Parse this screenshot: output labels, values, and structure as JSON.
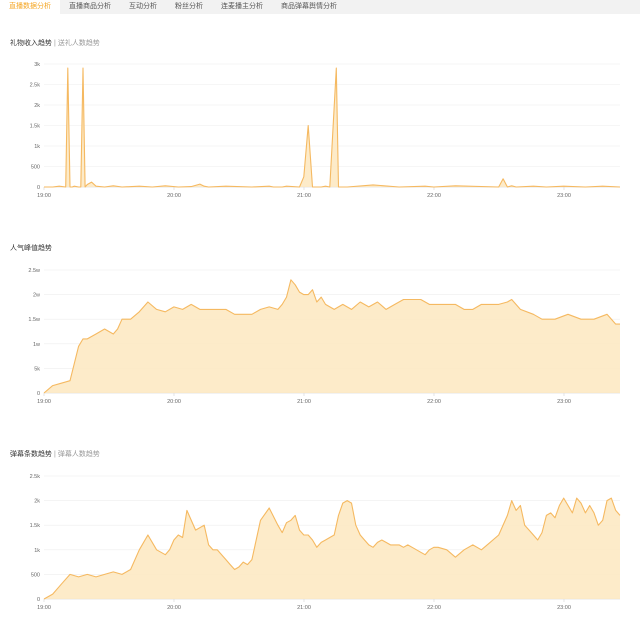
{
  "tabs": [
    {
      "label": "直播数据分析",
      "active": true
    },
    {
      "label": "直播商品分析",
      "active": false
    },
    {
      "label": "互动分析",
      "active": false
    },
    {
      "label": "粉丝分析",
      "active": false
    },
    {
      "label": "连麦播主分析",
      "active": false
    },
    {
      "label": "商品弹幕舆情分析",
      "active": false
    }
  ],
  "colors": {
    "line": "#f5b961",
    "fill": "#fde8c0",
    "grid": "#eeeeee",
    "axis": "#dddddd",
    "accent": "#f5a623"
  },
  "sections": [
    {
      "title": "礼物收入趋势",
      "subtitle": "送礼人数趋势"
    },
    {
      "title": "人气峰值趋势",
      "subtitle": ""
    },
    {
      "title": "弹幕条数趋势",
      "subtitle": "弹幕人数趋势"
    }
  ],
  "chart_data": [
    {
      "type": "area",
      "title": "礼物收入趋势",
      "x_ticks": [
        "19:00",
        "20:00",
        "21:00",
        "22:00",
        "23:00"
      ],
      "y_ticks": [
        "0",
        "500",
        "1k",
        "1.5k",
        "2k",
        "2.5k",
        "3k"
      ],
      "ylim": [
        0,
        3000
      ],
      "xlim": [
        0,
        266
      ],
      "grid": true,
      "x": [
        0,
        4,
        7,
        10,
        11,
        12,
        13,
        14,
        16,
        17,
        18,
        19,
        20,
        22,
        24,
        28,
        32,
        36,
        44,
        50,
        56,
        62,
        68,
        72,
        74,
        76,
        84,
        96,
        104,
        106,
        108,
        110,
        112,
        118,
        120,
        122,
        124,
        127,
        128,
        130,
        132,
        135,
        136,
        140,
        152,
        164,
        176,
        180,
        190,
        210,
        212,
        214,
        216,
        218,
        226,
        232,
        240,
        250,
        258,
        266
      ],
      "values": [
        0,
        0,
        20,
        0,
        2900,
        0,
        0,
        20,
        0,
        0,
        2900,
        0,
        60,
        120,
        20,
        0,
        30,
        0,
        20,
        0,
        30,
        0,
        10,
        70,
        20,
        0,
        20,
        0,
        20,
        0,
        0,
        0,
        20,
        0,
        250,
        1500,
        0,
        0,
        0,
        20,
        0,
        2900,
        0,
        0,
        50,
        0,
        20,
        0,
        30,
        0,
        200,
        0,
        30,
        0,
        20,
        0,
        20,
        0,
        20,
        0
      ]
    },
    {
      "type": "area",
      "title": "人气峰值趋势",
      "x_ticks": [
        "19:00",
        "20:00",
        "21:00",
        "22:00",
        "23:00"
      ],
      "y_ticks": [
        "0",
        "5k",
        "1w",
        "1.5w",
        "2w",
        "2.5w"
      ],
      "ylim": [
        0,
        25000
      ],
      "xlim": [
        0,
        266
      ],
      "grid": true,
      "x": [
        0,
        4,
        8,
        12,
        16,
        18,
        20,
        24,
        28,
        32,
        34,
        36,
        40,
        44,
        48,
        52,
        56,
        60,
        64,
        68,
        72,
        76,
        80,
        84,
        88,
        92,
        96,
        100,
        104,
        108,
        110,
        112,
        114,
        116,
        118,
        120,
        122,
        124,
        126,
        128,
        130,
        134,
        138,
        142,
        146,
        150,
        154,
        158,
        162,
        166,
        170,
        174,
        178,
        182,
        186,
        190,
        194,
        198,
        202,
        206,
        210,
        214,
        216,
        220,
        226,
        230,
        236,
        242,
        248,
        254,
        260,
        264,
        266
      ],
      "values": [
        0,
        1500,
        2000,
        2500,
        9500,
        11000,
        11000,
        12000,
        13000,
        12000,
        13000,
        15000,
        15000,
        16500,
        18500,
        17000,
        16500,
        17500,
        17000,
        18000,
        17000,
        17000,
        17000,
        17000,
        16000,
        16000,
        16000,
        17000,
        17500,
        17000,
        18000,
        19500,
        23000,
        22000,
        20500,
        20000,
        20000,
        21000,
        18500,
        19500,
        18000,
        17000,
        18000,
        17000,
        18500,
        17500,
        18500,
        17000,
        18000,
        19000,
        19000,
        19000,
        18000,
        18000,
        18000,
        18000,
        17000,
        17000,
        18000,
        18000,
        18000,
        18500,
        19000,
        17000,
        16000,
        15000,
        15000,
        16000,
        15000,
        15000,
        16000,
        14000,
        14000
      ]
    },
    {
      "type": "area",
      "title": "弹幕条数趋势",
      "x_ticks": [
        "19:00",
        "20:00",
        "21:00",
        "22:00",
        "23:00"
      ],
      "y_ticks": [
        "0",
        "500",
        "1k",
        "1.5k",
        "2k",
        "2.5k"
      ],
      "ylim": [
        0,
        2500
      ],
      "xlim": [
        0,
        266
      ],
      "grid": true,
      "x": [
        0,
        4,
        8,
        12,
        16,
        20,
        24,
        28,
        32,
        36,
        40,
        44,
        48,
        52,
        56,
        58,
        60,
        62,
        64,
        66,
        70,
        74,
        76,
        78,
        80,
        82,
        84,
        86,
        88,
        90,
        92,
        94,
        96,
        100,
        104,
        108,
        110,
        112,
        114,
        116,
        118,
        120,
        122,
        124,
        126,
        128,
        130,
        132,
        134,
        136,
        138,
        140,
        142,
        144,
        146,
        148,
        150,
        152,
        154,
        156,
        158,
        160,
        164,
        166,
        168,
        170,
        172,
        174,
        176,
        178,
        180,
        182,
        186,
        190,
        194,
        198,
        202,
        206,
        210,
        214,
        216,
        218,
        220,
        222,
        224,
        226,
        228,
        230,
        232,
        234,
        236,
        238,
        240,
        244,
        246,
        248,
        250,
        252,
        254,
        256,
        258,
        260,
        262,
        264,
        266
      ],
      "values": [
        0,
        100,
        300,
        500,
        450,
        500,
        450,
        500,
        550,
        500,
        600,
        1000,
        1300,
        1000,
        900,
        1000,
        1200,
        1300,
        1250,
        1800,
        1400,
        1500,
        1100,
        1000,
        1000,
        900,
        800,
        700,
        600,
        650,
        750,
        700,
        800,
        1600,
        1850,
        1500,
        1350,
        1550,
        1600,
        1700,
        1400,
        1300,
        1300,
        1200,
        1050,
        1150,
        1200,
        1250,
        1300,
        1700,
        1950,
        2000,
        1950,
        1500,
        1300,
        1200,
        1100,
        1050,
        1150,
        1200,
        1150,
        1100,
        1100,
        1050,
        1100,
        1050,
        1000,
        950,
        900,
        1000,
        1050,
        1050,
        1000,
        850,
        1000,
        1100,
        1000,
        1150,
        1300,
        1700,
        2000,
        1800,
        1900,
        1500,
        1400,
        1300,
        1200,
        1350,
        1700,
        1750,
        1650,
        1900,
        2050,
        1750,
        2050,
        1950,
        1750,
        1900,
        1750,
        1500,
        1600,
        2000,
        2050,
        1800,
        1700
      ]
    }
  ]
}
